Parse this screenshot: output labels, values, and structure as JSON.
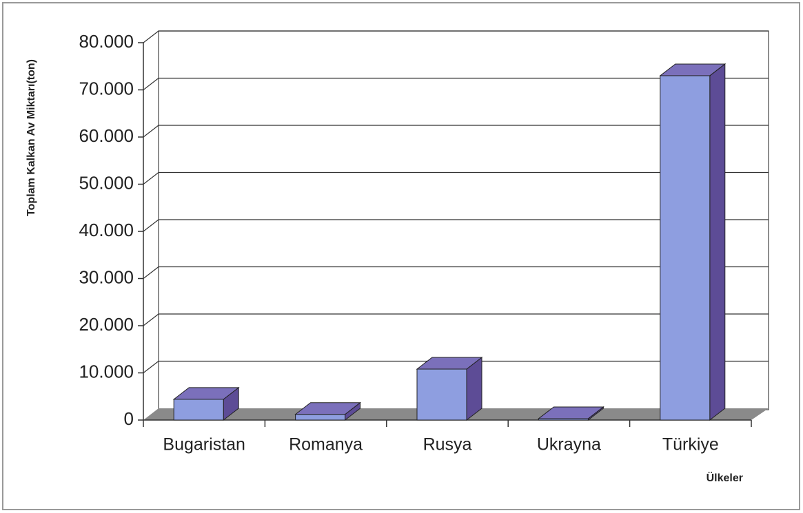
{
  "chart_data": {
    "type": "bar3d",
    "y_label": "Toplam Kalkan Av Miktarı(ton)",
    "x_label": "Ülkeler",
    "categories": [
      "Bugaristan",
      "Romanya",
      "Rusya",
      "Ukrayna",
      "Türkiye"
    ],
    "values": [
      4400,
      1200,
      10800,
      300,
      73000
    ],
    "color": "#8e9ee0",
    "ylim": [
      0,
      80000
    ],
    "yticks": [
      0,
      {
        "value": 10000,
        "label": "10.000"
      },
      {
        "value": 20000,
        "label": "20.000"
      },
      {
        "value": 30000,
        "label": "30.000"
      },
      {
        "value": 40000,
        "label": "40.000"
      },
      {
        "value": 50000,
        "label": "50.000"
      },
      {
        "value": 60000,
        "label": "60.000"
      },
      {
        "value": 70000,
        "label": "70.000"
      },
      {
        "value": 80000,
        "label": "80.000"
      }
    ],
    "grid": true
  }
}
